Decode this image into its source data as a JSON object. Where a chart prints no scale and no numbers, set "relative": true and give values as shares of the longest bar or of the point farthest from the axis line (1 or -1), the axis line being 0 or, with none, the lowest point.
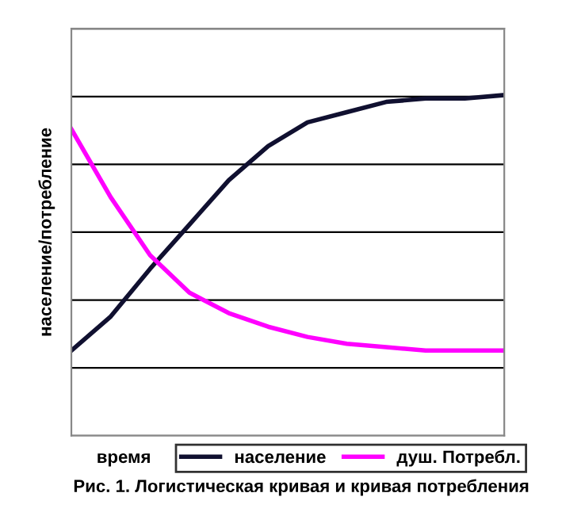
{
  "chart_data": {
    "type": "line",
    "relative": true,
    "ylabel": "население/потребление",
    "xlabel": "время",
    "annotations": [
      "Рис. 1. Логистическая кривая и кривая потребления"
    ],
    "categories": [
      null,
      null,
      null,
      null,
      null,
      null,
      null,
      null,
      null,
      null,
      null,
      null
    ],
    "series": [
      {
        "name": "население",
        "color": "#101030",
        "values": [
          0.25,
          0.35,
          0.49,
          0.62,
          0.75,
          0.85,
          0.92,
          0.95,
          0.98,
          0.99,
          0.99,
          1
        ]
      },
      {
        "name": "душ. Потребл.",
        "color": "#ff00ff",
        "values": [
          0.9,
          0.7,
          0.53,
          0.42,
          0.36,
          0.32,
          0.29,
          0.27,
          0.26,
          0.25,
          0.25,
          0.25
        ]
      }
    ],
    "grid": "y",
    "legend": "bottom",
    "marker": "none",
    "line_style": "solid"
  }
}
